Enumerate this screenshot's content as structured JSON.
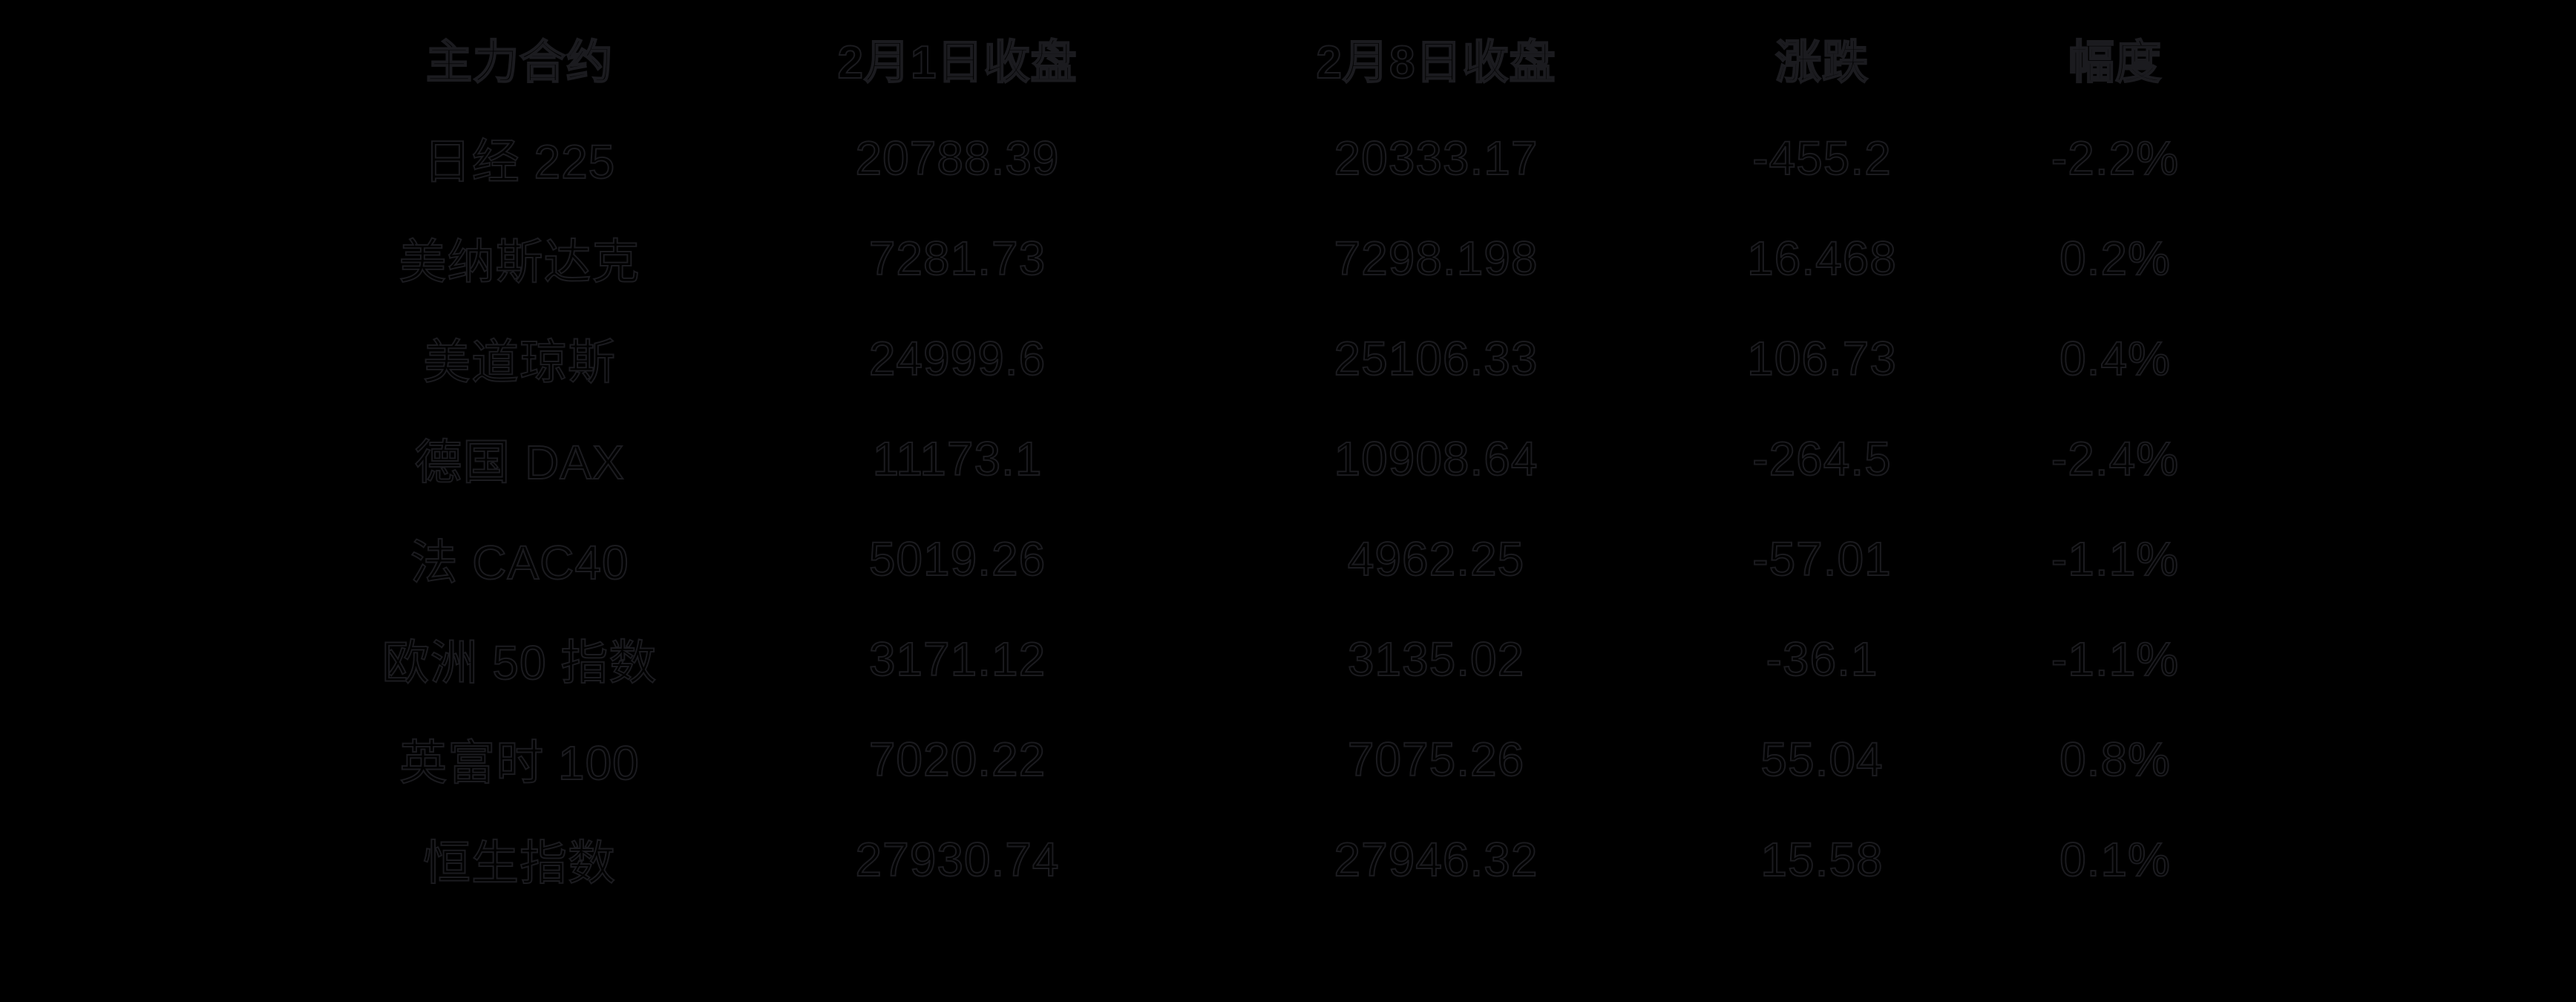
{
  "colors": {
    "background": "#000000",
    "text_outline": "#1b1b1f"
  },
  "chart_data": {
    "type": "table",
    "columns": [
      "主力合约",
      "2月1日收盘",
      "2月8日收盘",
      "涨跌",
      "幅度"
    ],
    "rows": [
      [
        "日经 225",
        20788.39,
        20333.17,
        -455.2,
        "-2.2%"
      ],
      [
        "美纳斯达克",
        7281.73,
        7298.198,
        16.468,
        "0.2%"
      ],
      [
        "美道琼斯",
        24999.6,
        25106.33,
        106.73,
        "0.4%"
      ],
      [
        "德国 DAX",
        11173.1,
        10908.64,
        -264.5,
        "-2.4%"
      ],
      [
        "法 CAC40",
        5019.26,
        4962.25,
        -57.01,
        "-1.1%"
      ],
      [
        "欧洲 50 指数",
        3171.12,
        3135.02,
        -36.1,
        "-1.1%"
      ],
      [
        "英富时 100",
        7020.22,
        7075.26,
        55.04,
        "0.8%"
      ],
      [
        "恒生指数",
        27930.74,
        27946.32,
        15.58,
        "0.1%"
      ]
    ],
    "layout": {
      "header_row": true,
      "grid": false,
      "legend": "none"
    }
  }
}
